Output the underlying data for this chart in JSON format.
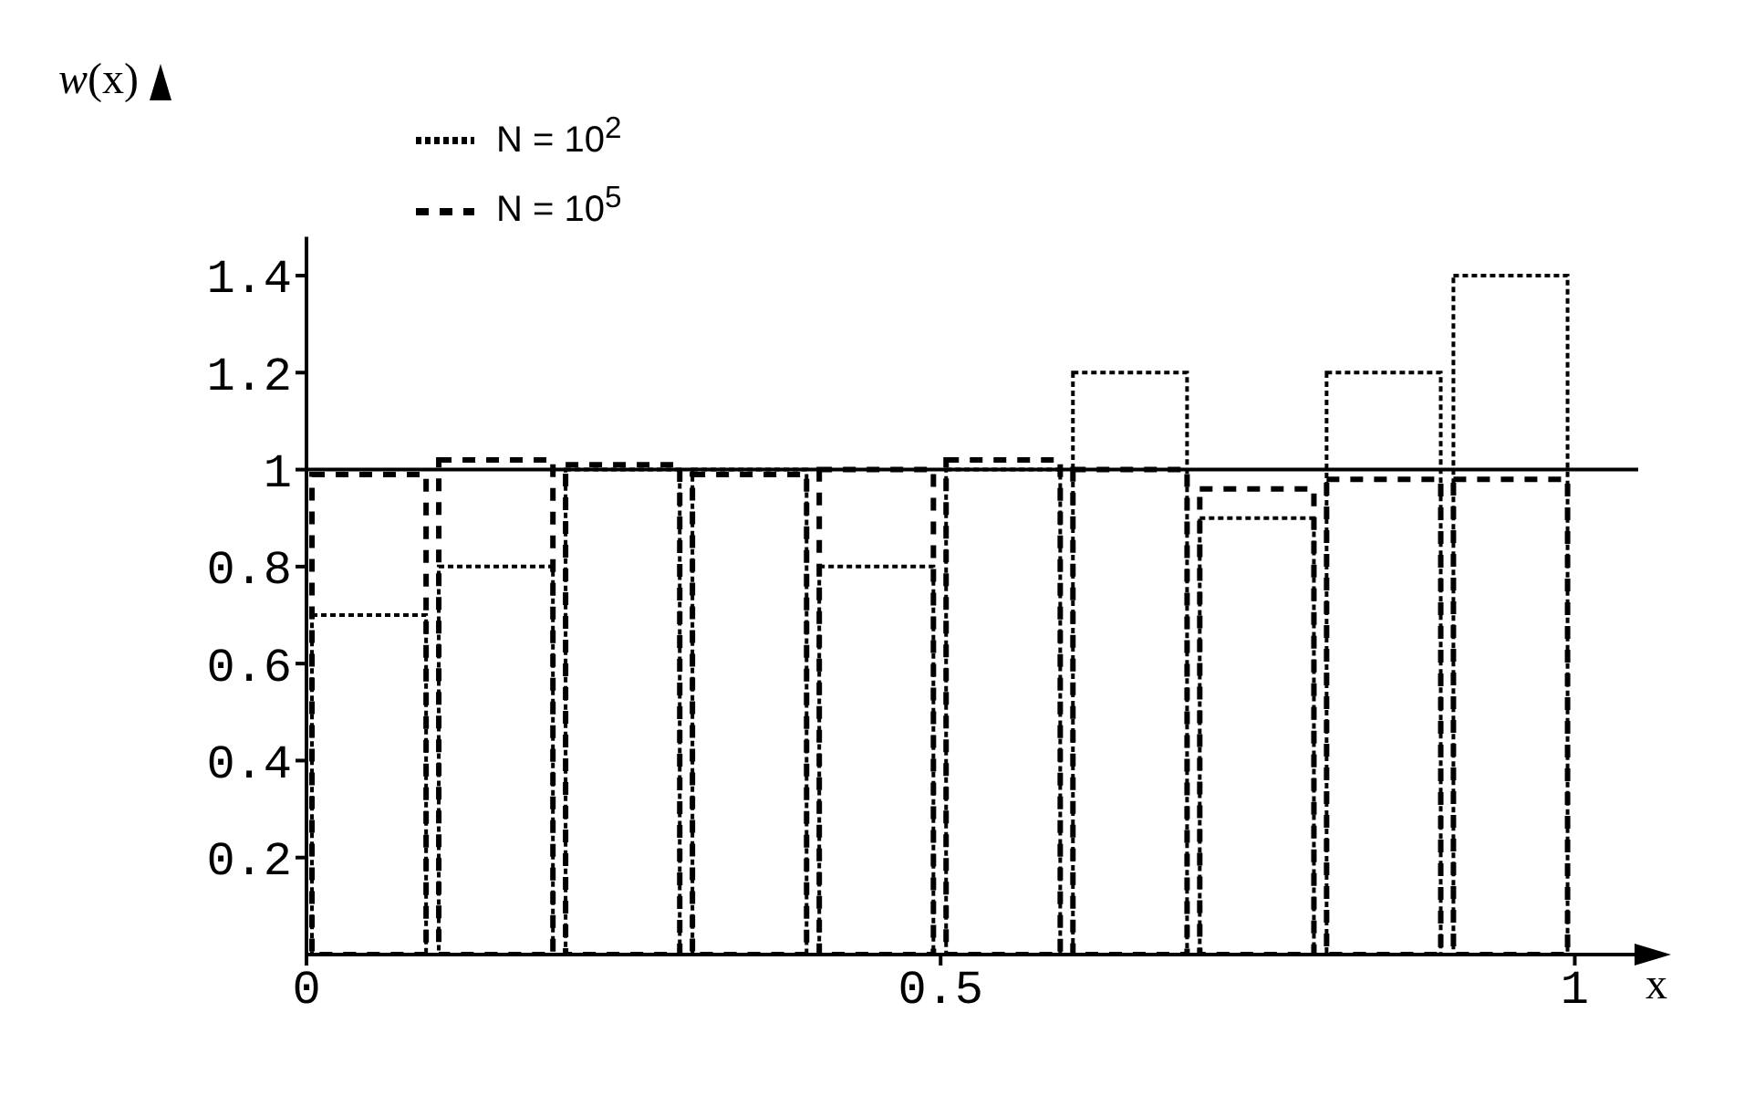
{
  "chart_data": {
    "type": "histogram",
    "xlabel": "x",
    "ylabel": "w(x)",
    "bins": [
      0,
      0.1,
      0.2,
      0.3,
      0.4,
      0.5,
      0.6,
      0.7,
      0.8,
      0.9,
      1
    ],
    "series": [
      {
        "name": "N = 10$^{2}$",
        "color": "#000000",
        "line_style": "dotted",
        "values": [
          0.7,
          0.8,
          1.0,
          1.0,
          0.8,
          1.0,
          1.2,
          0.9,
          1.2,
          1.4
        ]
      },
      {
        "name": "N = 10$^{5}$",
        "color": "#000000",
        "line_style": "dashed",
        "values": [
          0.99,
          1.02,
          1.01,
          0.99,
          1.0,
          1.02,
          1.0,
          0.96,
          0.98,
          0.98
        ]
      }
    ],
    "xlim": [
      0,
      1.05
    ],
    "xticks": [
      0,
      0.5,
      1
    ],
    "ylim": [
      0,
      1.48
    ],
    "yticks": [
      0.2,
      0.4,
      0.6,
      0.8,
      1,
      1.2,
      1.4
    ],
    "ref_lines": [
      {
        "axis": "y",
        "value": 1,
        "color": "#000000",
        "line_style": "solid"
      }
    ],
    "grid": false,
    "legend": "top left"
  }
}
